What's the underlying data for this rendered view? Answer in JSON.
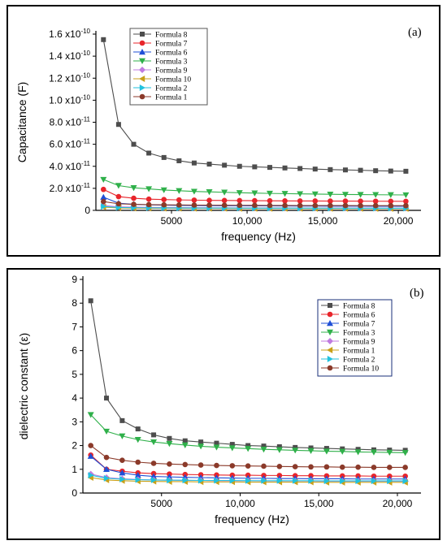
{
  "chart_data": [
    {
      "type": "line",
      "panel_label": "(a)",
      "ylabel": "Capacitance (F)",
      "xlabel": "frequency (Hz)",
      "xlim": [
        0,
        21500
      ],
      "ylim": [
        0,
        1.6e-10
      ],
      "x_ticks": [
        5000,
        10000,
        15000,
        20000
      ],
      "x_tick_labels": [
        "5000",
        "10,000",
        "15,000",
        "20,000"
      ],
      "y_ticks": [
        0,
        2e-11,
        4e-11,
        6e-11,
        8e-11,
        1e-10,
        1.2e-10,
        1.4e-10,
        1.6e-10
      ],
      "y_tick_labels": [
        "0",
        "2.0 x10-11",
        "4.0 x10-11",
        "6.0 x10-11",
        "8.0 x10-11",
        "1.0 x10-10",
        "1.2 x10-10",
        "1.4 x10-10",
        "1.6 x10-10"
      ],
      "legend_position": "top-left",
      "x": [
        500,
        1500,
        2500,
        3500,
        4500,
        5500,
        6500,
        7500,
        8500,
        9500,
        10500,
        11500,
        12500,
        13500,
        14500,
        15500,
        16500,
        17500,
        18500,
        19500,
        20500
      ],
      "series": [
        {
          "name": "Formula 8",
          "color": "#4d4d4d",
          "marker": "square",
          "values": [
            1.55e-10,
            7.8e-11,
            6e-11,
            5.2e-11,
            4.8e-11,
            4.5e-11,
            4.3e-11,
            4.2e-11,
            4.1e-11,
            4e-11,
            3.95e-11,
            3.9e-11,
            3.85e-11,
            3.8e-11,
            3.75e-11,
            3.7e-11,
            3.67e-11,
            3.64e-11,
            3.6e-11,
            3.57e-11,
            3.55e-11
          ]
        },
        {
          "name": "Formula 7",
          "color": "#e8252b",
          "marker": "circle",
          "values": [
            1.9e-11,
            1.25e-11,
            1.1e-11,
            1.02e-11,
            9.8e-12,
            9.5e-12,
            9.3e-12,
            9.1e-12,
            9e-12,
            8.9e-12,
            8.8e-12,
            8.7e-12,
            8.6e-12,
            8.55e-12,
            8.5e-12,
            8.45e-12,
            8.4e-12,
            8.35e-12,
            8.3e-12,
            8.25e-12,
            8.2e-12
          ]
        },
        {
          "name": "Formula 6",
          "color": "#1f4fd6",
          "marker": "triangle-up",
          "values": [
            1.2e-11,
            6.5e-12,
            5.5e-12,
            5e-12,
            4.7e-12,
            4.5e-12,
            4.4e-12,
            4.3e-12,
            4.2e-12,
            4.15e-12,
            4.1e-12,
            4.05e-12,
            4e-12,
            3.95e-12,
            3.9e-12,
            3.85e-12,
            3.8e-12,
            3.8e-12,
            3.75e-12,
            3.7e-12,
            3.7e-12
          ]
        },
        {
          "name": "Formula 3",
          "color": "#2fb04a",
          "marker": "triangle-down",
          "values": [
            2.8e-11,
            2.25e-11,
            2.05e-11,
            1.95e-11,
            1.85e-11,
            1.78e-11,
            1.72e-11,
            1.68e-11,
            1.64e-11,
            1.6e-11,
            1.57e-11,
            1.54e-11,
            1.52e-11,
            1.5e-11,
            1.48e-11,
            1.46e-11,
            1.44e-11,
            1.43e-11,
            1.42e-11,
            1.41e-11,
            1.4e-11
          ]
        },
        {
          "name": "Formula 9",
          "color": "#c07be0",
          "marker": "diamond",
          "values": [
            4.5e-12,
            3.2e-12,
            2.9e-12,
            2.7e-12,
            2.6e-12,
            2.5e-12,
            2.45e-12,
            2.4e-12,
            2.35e-12,
            2.3e-12,
            2.3e-12,
            2.25e-12,
            2.25e-12,
            2.2e-12,
            2.2e-12,
            2.2e-12,
            2.15e-12,
            2.15e-12,
            2.15e-12,
            2.1e-12,
            2.1e-12
          ]
        },
        {
          "name": "Formula 10",
          "color": "#c8a018",
          "marker": "triangle-left",
          "values": [
            3e-12,
            2.2e-12,
            2e-12,
            1.9e-12,
            1.85e-12,
            1.8e-12,
            1.78e-12,
            1.75e-12,
            1.72e-12,
            1.7e-12,
            1.7e-12,
            1.68e-12,
            1.66e-12,
            1.65e-12,
            1.64e-12,
            1.63e-12,
            1.62e-12,
            1.62e-12,
            1.61e-12,
            1.6e-12,
            1.6e-12
          ]
        },
        {
          "name": "Formula 2",
          "color": "#22c2de",
          "marker": "triangle-right",
          "values": [
            3.5e-12,
            2.6e-12,
            2.4e-12,
            2.3e-12,
            2.2e-12,
            2.15e-12,
            2.1e-12,
            2.08e-12,
            2.05e-12,
            2.02e-12,
            2e-12,
            1.98e-12,
            1.97e-12,
            1.96e-12,
            1.95e-12,
            1.94e-12,
            1.93e-12,
            1.92e-12,
            1.91e-12,
            1.9e-12,
            1.9e-12
          ]
        },
        {
          "name": "Formula 1",
          "color": "#8b3a2a",
          "marker": "circle",
          "values": [
            8e-12,
            6e-12,
            5.5e-12,
            5.2e-12,
            5e-12,
            4.9e-12,
            4.8e-12,
            4.7e-12,
            4.65e-12,
            4.6e-12,
            4.55e-12,
            4.5e-12,
            4.45e-12,
            4.4e-12,
            4.4e-12,
            4.35e-12,
            4.35e-12,
            4.3e-12,
            4.3e-12,
            4.25e-12,
            4.25e-12
          ]
        }
      ]
    },
    {
      "type": "line",
      "panel_label": "(b)",
      "ylabel": "dielectric constant (ε)",
      "xlabel": "frequency (Hz)",
      "xlim": [
        0,
        21500
      ],
      "ylim": [
        0,
        9
      ],
      "x_ticks": [
        5000,
        10000,
        15000,
        20000
      ],
      "x_tick_labels": [
        "5000",
        "10,000",
        "15,000",
        "20,000"
      ],
      "y_ticks": [
        0,
        1,
        2,
        3,
        4,
        5,
        6,
        7,
        8,
        9
      ],
      "y_tick_labels": [
        "0",
        "1",
        "2",
        "3",
        "4",
        "5",
        "6",
        "7",
        "8",
        "9"
      ],
      "legend_position": "top-right",
      "x": [
        500,
        1500,
        2500,
        3500,
        4500,
        5500,
        6500,
        7500,
        8500,
        9500,
        10500,
        11500,
        12500,
        13500,
        14500,
        15500,
        16500,
        17500,
        18500,
        19500,
        20500
      ],
      "series": [
        {
          "name": "Formula 8",
          "color": "#4d4d4d",
          "marker": "square",
          "values": [
            8.1,
            4.0,
            3.05,
            2.7,
            2.45,
            2.3,
            2.2,
            2.15,
            2.1,
            2.05,
            2.0,
            1.98,
            1.95,
            1.92,
            1.9,
            1.88,
            1.86,
            1.84,
            1.82,
            1.81,
            1.8
          ]
        },
        {
          "name": "Formula 6",
          "color": "#e8252b",
          "marker": "circle",
          "values": [
            1.6,
            1.0,
            0.92,
            0.85,
            0.82,
            0.8,
            0.78,
            0.77,
            0.76,
            0.75,
            0.75,
            0.74,
            0.74,
            0.73,
            0.73,
            0.72,
            0.72,
            0.72,
            0.71,
            0.71,
            0.71
          ]
        },
        {
          "name": "Formula 7",
          "color": "#1f4fd6",
          "marker": "triangle-up",
          "values": [
            1.55,
            1.0,
            0.85,
            0.75,
            0.7,
            0.68,
            0.66,
            0.65,
            0.64,
            0.63,
            0.62,
            0.62,
            0.61,
            0.61,
            0.6,
            0.6,
            0.6,
            0.59,
            0.59,
            0.59,
            0.59
          ]
        },
        {
          "name": "Formula 3",
          "color": "#2fb04a",
          "marker": "triangle-down",
          "values": [
            3.3,
            2.6,
            2.4,
            2.25,
            2.15,
            2.08,
            2.02,
            1.97,
            1.93,
            1.9,
            1.87,
            1.84,
            1.82,
            1.8,
            1.78,
            1.76,
            1.75,
            1.73,
            1.72,
            1.71,
            1.7
          ]
        },
        {
          "name": "Formula 9",
          "color": "#c07be0",
          "marker": "diamond",
          "values": [
            0.8,
            0.65,
            0.6,
            0.57,
            0.55,
            0.54,
            0.53,
            0.53,
            0.52,
            0.52,
            0.52,
            0.51,
            0.51,
            0.51,
            0.51,
            0.5,
            0.5,
            0.5,
            0.5,
            0.5,
            0.5
          ]
        },
        {
          "name": "Formula 1",
          "color": "#c8a018",
          "marker": "triangle-left",
          "values": [
            0.65,
            0.55,
            0.52,
            0.5,
            0.49,
            0.48,
            0.48,
            0.47,
            0.47,
            0.47,
            0.46,
            0.46,
            0.46,
            0.46,
            0.46,
            0.45,
            0.45,
            0.45,
            0.45,
            0.45,
            0.45
          ]
        },
        {
          "name": "Formula 2",
          "color": "#22c2de",
          "marker": "triangle-right",
          "values": [
            0.75,
            0.62,
            0.58,
            0.56,
            0.55,
            0.54,
            0.54,
            0.53,
            0.53,
            0.53,
            0.52,
            0.52,
            0.52,
            0.52,
            0.52,
            0.51,
            0.51,
            0.51,
            0.51,
            0.51,
            0.51
          ]
        },
        {
          "name": "Formula 10",
          "color": "#8b3a2a",
          "marker": "circle",
          "values": [
            2.0,
            1.5,
            1.38,
            1.3,
            1.25,
            1.22,
            1.2,
            1.18,
            1.16,
            1.15,
            1.14,
            1.13,
            1.12,
            1.11,
            1.1,
            1.1,
            1.09,
            1.09,
            1.08,
            1.08,
            1.08
          ]
        }
      ]
    }
  ]
}
